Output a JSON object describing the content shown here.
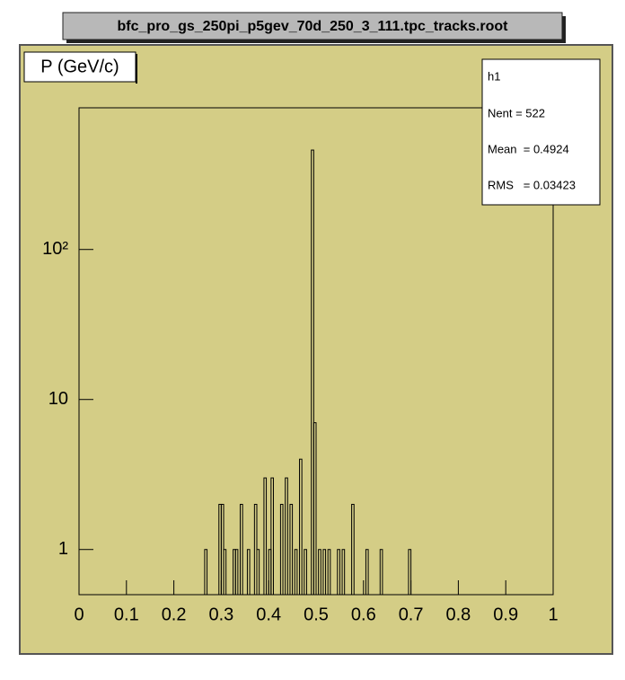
{
  "chart_data": {
    "type": "histogram",
    "title": "bfc_pro_gs_250pi_p5gev_70d_250_3_111.tpc_tracks.root",
    "pad_label": "P (GeV/c)",
    "stats": {
      "name": "h1",
      "entries": "Nent = 522",
      "mean": "Mean  = 0.4924",
      "rms": "RMS   = 0.03423"
    },
    "color": "#000000",
    "log_y": true,
    "xlim": [
      0,
      1
    ],
    "xticks": [
      0,
      0.1,
      0.2,
      0.3,
      0.4,
      0.5,
      0.6,
      0.7,
      0.8,
      0.9,
      1
    ],
    "ylim": [
      0.5,
      880
    ],
    "yticks": [
      1,
      10,
      {
        "value": 100,
        "label": "10²"
      }
    ],
    "bins": [
      0,
      0.005,
      0.01,
      0.015,
      0.02,
      0.025,
      0.03,
      0.035,
      0.04,
      0.045,
      0.05,
      0.055,
      0.06,
      0.065,
      0.07,
      0.075,
      0.08,
      0.085,
      0.09,
      0.095,
      0.1,
      0.105,
      0.11,
      0.115,
      0.12,
      0.125,
      0.13,
      0.135,
      0.14,
      0.145,
      0.15,
      0.155,
      0.16,
      0.165,
      0.17,
      0.175,
      0.18,
      0.185,
      0.19,
      0.195,
      0.2,
      0.205,
      0.21,
      0.215,
      0.22,
      0.225,
      0.23,
      0.235,
      0.24,
      0.245,
      0.25,
      0.255,
      0.26,
      0.265,
      0.27,
      0.275,
      0.28,
      0.285,
      0.29,
      0.295,
      0.3,
      0.305,
      0.31,
      0.315,
      0.32,
      0.325,
      0.33,
      0.335,
      0.34,
      0.345,
      0.35,
      0.355,
      0.36,
      0.365,
      0.37,
      0.375,
      0.38,
      0.385,
      0.39,
      0.395,
      0.4,
      0.405,
      0.41,
      0.415,
      0.42,
      0.425,
      0.43,
      0.435,
      0.44,
      0.445,
      0.45,
      0.455,
      0.46,
      0.465,
      0.47,
      0.475,
      0.48,
      0.485,
      0.49,
      0.495,
      0.5,
      0.505,
      0.51,
      0.515,
      0.52,
      0.525,
      0.53,
      0.535,
      0.54,
      0.545,
      0.55,
      0.555,
      0.56,
      0.565,
      0.57,
      0.575,
      0.58,
      0.585,
      0.59,
      0.595,
      0.6,
      0.605,
      0.61,
      0.615,
      0.62,
      0.625,
      0.63,
      0.635,
      0.64,
      0.645,
      0.65,
      0.655,
      0.66,
      0.665,
      0.67,
      0.675,
      0.68,
      0.685,
      0.69,
      0.695,
      0.7,
      0.705,
      0.71,
      0.715,
      0.72,
      0.725,
      0.73,
      0.735,
      0.74,
      0.745,
      0.75,
      0.755,
      0.76,
      0.765,
      0.77,
      0.775,
      0.78,
      0.785,
      0.79,
      0.795,
      0.8,
      0.805,
      0.81,
      0.815,
      0.82,
      0.825,
      0.83,
      0.835,
      0.84,
      0.845,
      0.85,
      0.855,
      0.86,
      0.865,
      0.87,
      0.875,
      0.88,
      0.885,
      0.89,
      0.895,
      0.9,
      0.905,
      0.91,
      0.915,
      0.92,
      0.925,
      0.93,
      0.935,
      0.94,
      0.945,
      0.95,
      0.955,
      0.96,
      0.965,
      0.97,
      0.975,
      0.98,
      0.985,
      0.99,
      0.995,
      1
    ],
    "counts": [
      0,
      0,
      0,
      0,
      0,
      0,
      0,
      0,
      0,
      0,
      0,
      0,
      0,
      0,
      0,
      0,
      0,
      0,
      0,
      0,
      0,
      0,
      0,
      0,
      0,
      0,
      0,
      0,
      0,
      0,
      0,
      0,
      0,
      0,
      0,
      0,
      0,
      0,
      0,
      0,
      0,
      0,
      0,
      0,
      0,
      0,
      0,
      0,
      0,
      0,
      0,
      0,
      0,
      1,
      0,
      0,
      0,
      0,
      0,
      2,
      2,
      1,
      0,
      0,
      0,
      1,
      1,
      0,
      2,
      0,
      0,
      1,
      0,
      0,
      2,
      1,
      0,
      0,
      3,
      0,
      1,
      3,
      0,
      0,
      0,
      2,
      0,
      3,
      0,
      2,
      0,
      1,
      0,
      4,
      0,
      1,
      0,
      0,
      460,
      7,
      0,
      1,
      0,
      1,
      0,
      1,
      0,
      0,
      0,
      1,
      0,
      1,
      0,
      0,
      0,
      2,
      0,
      0,
      0,
      0,
      0,
      1,
      0,
      0,
      0,
      0,
      0,
      1,
      0,
      0,
      0,
      0,
      0,
      0,
      0,
      0,
      0,
      0,
      0,
      1,
      0,
      0,
      0,
      0,
      0,
      0,
      0,
      0,
      0,
      0,
      0,
      0,
      0,
      0,
      0,
      0,
      0,
      0,
      0,
      0,
      0,
      0,
      0,
      0,
      0,
      0,
      0,
      0,
      0,
      0,
      0,
      0,
      0,
      0,
      0,
      0,
      0,
      0,
      0,
      0,
      0,
      0,
      0,
      0,
      0,
      0,
      0,
      0,
      0,
      0,
      0,
      0,
      0,
      0,
      0,
      0,
      0,
      0,
      0,
      0
    ]
  }
}
